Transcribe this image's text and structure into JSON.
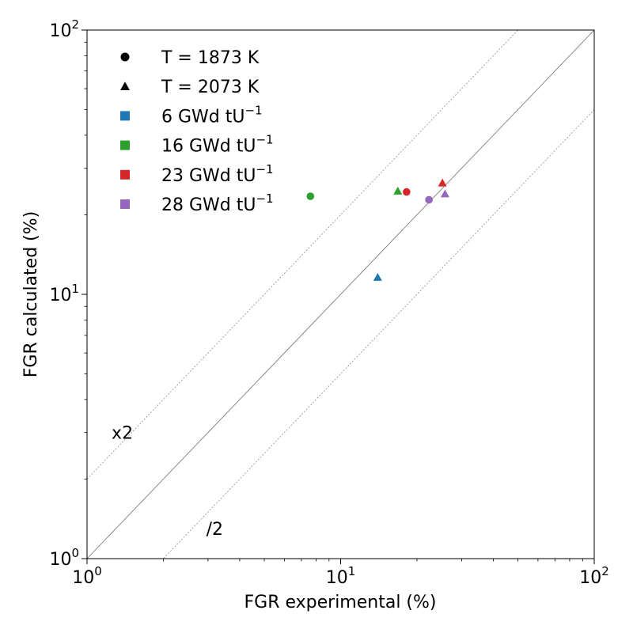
{
  "chart_data": {
    "type": "scatter",
    "xlabel": "FGR experimental (%)",
    "ylabel": "FGR calculated (%)",
    "xscale": "log",
    "yscale": "log",
    "xlim": [
      1,
      100
    ],
    "ylim": [
      1,
      100
    ],
    "grid": false,
    "legend_position": "upper-left",
    "xticks": [
      {
        "value": 1,
        "base": "10",
        "exp": "0"
      },
      {
        "value": 10,
        "base": "10",
        "exp": "1"
      },
      {
        "value": 100,
        "base": "10",
        "exp": "2"
      }
    ],
    "yticks": [
      {
        "value": 1,
        "base": "10",
        "exp": "0"
      },
      {
        "value": 10,
        "base": "10",
        "exp": "1"
      },
      {
        "value": 100,
        "base": "10",
        "exp": "2"
      }
    ],
    "reference_lines": [
      {
        "label": "",
        "factor": 1,
        "style": "solid"
      },
      {
        "label": "x2",
        "factor": 2,
        "style": "dotted",
        "label_x": 1.25,
        "label_y": 3.0
      },
      {
        "label": "/2",
        "factor": 0.5,
        "style": "dotted",
        "label_x": 2.95,
        "label_y": 1.3
      }
    ],
    "legend": {
      "markers": [
        {
          "marker": "circle",
          "label": "T = 1873 K"
        },
        {
          "marker": "triangle",
          "label": "T = 2073 K"
        }
      ],
      "burnups": [
        {
          "color": "#1f77b4",
          "text": "6 GWd tU",
          "sup": "−1"
        },
        {
          "color": "#2ca02c",
          "text": "16 GWd tU",
          "sup": "−1"
        },
        {
          "color": "#d62728",
          "text": "23 GWd tU",
          "sup": "−1"
        },
        {
          "color": "#9467bd",
          "text": "28 GWd tU",
          "sup": "−1"
        }
      ]
    },
    "points": [
      {
        "x": 7.6,
        "y": 23.5,
        "marker": "circle",
        "color": "#2ca02c"
      },
      {
        "x": 18.2,
        "y": 24.4,
        "marker": "circle",
        "color": "#d62728"
      },
      {
        "x": 22.3,
        "y": 22.8,
        "marker": "circle",
        "color": "#9467bd"
      },
      {
        "x": 14.0,
        "y": 11.6,
        "marker": "triangle",
        "color": "#1f77b4"
      },
      {
        "x": 16.8,
        "y": 24.6,
        "marker": "triangle",
        "color": "#2ca02c"
      },
      {
        "x": 25.2,
        "y": 26.4,
        "marker": "triangle",
        "color": "#d62728"
      },
      {
        "x": 25.8,
        "y": 24.0,
        "marker": "triangle",
        "color": "#9467bd"
      }
    ]
  }
}
